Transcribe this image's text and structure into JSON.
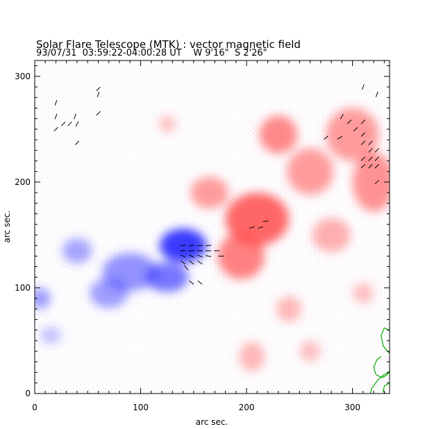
{
  "figure": {
    "title": "Solar Flare Telescope (MTK) : vector magnetic field",
    "subtitle": "93/07/31  03:59:22-04:00:28 UT    W 9'16\"  S 2'26\""
  },
  "colors": {
    "positive_polarity": "#ff4d4d",
    "negative_polarity": "#3b3bff",
    "contour": "#00aa00",
    "vector": "#000000"
  },
  "chart_data": {
    "type": "heatmap",
    "title": "Solar Flare Telescope (MTK) : vector magnetic field",
    "xlabel": "arc sec.",
    "ylabel": "arc sec.",
    "xlim": [
      0,
      335
    ],
    "ylim": [
      0,
      315
    ],
    "x_ticks": [
      {
        "value": 0,
        "label": "0"
      },
      {
        "value": 100,
        "label": "100"
      },
      {
        "value": 200,
        "label": "200"
      },
      {
        "value": 300,
        "label": "300"
      }
    ],
    "y_ticks": [
      {
        "value": 0,
        "label": "0"
      },
      {
        "value": 100,
        "label": "100"
      },
      {
        "value": 200,
        "label": "200"
      },
      {
        "value": 300,
        "label": "300"
      }
    ],
    "regions": [
      {
        "polarity": "negative",
        "x": 140,
        "y": 140,
        "rx": 22,
        "ry": 16,
        "strength": 1.0
      },
      {
        "polarity": "negative",
        "x": 125,
        "y": 110,
        "rx": 20,
        "ry": 14,
        "strength": 0.7
      },
      {
        "polarity": "negative",
        "x": 90,
        "y": 115,
        "rx": 26,
        "ry": 18,
        "strength": 0.55
      },
      {
        "polarity": "negative",
        "x": 70,
        "y": 95,
        "rx": 18,
        "ry": 14,
        "strength": 0.5
      },
      {
        "polarity": "negative",
        "x": 40,
        "y": 135,
        "rx": 14,
        "ry": 12,
        "strength": 0.45
      },
      {
        "polarity": "negative",
        "x": 5,
        "y": 90,
        "rx": 10,
        "ry": 10,
        "strength": 0.5
      },
      {
        "polarity": "negative",
        "x": 15,
        "y": 55,
        "rx": 10,
        "ry": 8,
        "strength": 0.3
      },
      {
        "polarity": "positive",
        "x": 210,
        "y": 165,
        "rx": 30,
        "ry": 25,
        "strength": 0.85
      },
      {
        "polarity": "positive",
        "x": 195,
        "y": 130,
        "rx": 22,
        "ry": 22,
        "strength": 0.7
      },
      {
        "polarity": "positive",
        "x": 165,
        "y": 190,
        "rx": 18,
        "ry": 15,
        "strength": 0.55
      },
      {
        "polarity": "positive",
        "x": 230,
        "y": 245,
        "rx": 18,
        "ry": 18,
        "strength": 0.65
      },
      {
        "polarity": "positive",
        "x": 260,
        "y": 210,
        "rx": 22,
        "ry": 22,
        "strength": 0.55
      },
      {
        "polarity": "positive",
        "x": 300,
        "y": 245,
        "rx": 25,
        "ry": 25,
        "strength": 0.55
      },
      {
        "polarity": "positive",
        "x": 320,
        "y": 200,
        "rx": 20,
        "ry": 28,
        "strength": 0.6
      },
      {
        "polarity": "positive",
        "x": 280,
        "y": 150,
        "rx": 18,
        "ry": 16,
        "strength": 0.45
      },
      {
        "polarity": "positive",
        "x": 240,
        "y": 80,
        "rx": 12,
        "ry": 12,
        "strength": 0.4
      },
      {
        "polarity": "positive",
        "x": 260,
        "y": 40,
        "rx": 10,
        "ry": 10,
        "strength": 0.35
      },
      {
        "polarity": "positive",
        "x": 205,
        "y": 35,
        "rx": 12,
        "ry": 14,
        "strength": 0.4
      },
      {
        "polarity": "positive",
        "x": 125,
        "y": 255,
        "rx": 8,
        "ry": 8,
        "strength": 0.35
      },
      {
        "polarity": "positive",
        "x": 310,
        "y": 95,
        "rx": 10,
        "ry": 10,
        "strength": 0.35
      }
    ],
    "vectors": [
      {
        "x": 20,
        "y": 275,
        "angle": 70
      },
      {
        "x": 20,
        "y": 262,
        "angle": 70
      },
      {
        "x": 20,
        "y": 250,
        "angle": 45
      },
      {
        "x": 27,
        "y": 255,
        "angle": 45
      },
      {
        "x": 33,
        "y": 255,
        "angle": 45
      },
      {
        "x": 38,
        "y": 262,
        "angle": 70
      },
      {
        "x": 40,
        "y": 255,
        "angle": 60
      },
      {
        "x": 40,
        "y": 237,
        "angle": 45
      },
      {
        "x": 60,
        "y": 288,
        "angle": 45
      },
      {
        "x": 60,
        "y": 283,
        "angle": 70
      },
      {
        "x": 60,
        "y": 265,
        "angle": 45
      },
      {
        "x": 140,
        "y": 140,
        "angle": 5
      },
      {
        "x": 148,
        "y": 140,
        "angle": 5
      },
      {
        "x": 156,
        "y": 140,
        "angle": 5
      },
      {
        "x": 164,
        "y": 140,
        "angle": 5
      },
      {
        "x": 140,
        "y": 135,
        "angle": 0
      },
      {
        "x": 148,
        "y": 135,
        "angle": 0
      },
      {
        "x": 156,
        "y": 135,
        "angle": 0
      },
      {
        "x": 164,
        "y": 135,
        "angle": 0
      },
      {
        "x": 172,
        "y": 135,
        "angle": 0
      },
      {
        "x": 140,
        "y": 130,
        "angle": -20
      },
      {
        "x": 148,
        "y": 130,
        "angle": -25
      },
      {
        "x": 156,
        "y": 130,
        "angle": -20
      },
      {
        "x": 164,
        "y": 130,
        "angle": -10
      },
      {
        "x": 176,
        "y": 130,
        "angle": 0
      },
      {
        "x": 140,
        "y": 124,
        "angle": -40
      },
      {
        "x": 148,
        "y": 124,
        "angle": -40
      },
      {
        "x": 156,
        "y": 124,
        "angle": -35
      },
      {
        "x": 148,
        "y": 105,
        "angle": -40
      },
      {
        "x": 156,
        "y": 105,
        "angle": -40
      },
      {
        "x": 143,
        "y": 119,
        "angle": -50
      },
      {
        "x": 205,
        "y": 157,
        "angle": 15
      },
      {
        "x": 213,
        "y": 157,
        "angle": 15
      },
      {
        "x": 218,
        "y": 163,
        "angle": 5
      },
      {
        "x": 275,
        "y": 242,
        "angle": 40
      },
      {
        "x": 288,
        "y": 242,
        "angle": 30
      },
      {
        "x": 290,
        "y": 262,
        "angle": 60
      },
      {
        "x": 297,
        "y": 257,
        "angle": 45
      },
      {
        "x": 303,
        "y": 250,
        "angle": 45
      },
      {
        "x": 310,
        "y": 257,
        "angle": 45
      },
      {
        "x": 310,
        "y": 245,
        "angle": 45
      },
      {
        "x": 310,
        "y": 237,
        "angle": 45
      },
      {
        "x": 317,
        "y": 237,
        "angle": 45
      },
      {
        "x": 317,
        "y": 230,
        "angle": 45
      },
      {
        "x": 317,
        "y": 222,
        "angle": 45
      },
      {
        "x": 323,
        "y": 230,
        "angle": 45
      },
      {
        "x": 323,
        "y": 222,
        "angle": 45
      },
      {
        "x": 310,
        "y": 222,
        "angle": 45
      },
      {
        "x": 310,
        "y": 215,
        "angle": 45
      },
      {
        "x": 317,
        "y": 215,
        "angle": 45
      },
      {
        "x": 323,
        "y": 215,
        "angle": 45
      },
      {
        "x": 323,
        "y": 200,
        "angle": 45
      },
      {
        "x": 310,
        "y": 290,
        "angle": 70
      },
      {
        "x": 323,
        "y": 283,
        "angle": 70
      }
    ],
    "contours": [
      [
        [
          335,
          60
        ],
        [
          330,
          62
        ],
        [
          327,
          55
        ],
        [
          329,
          45
        ],
        [
          333,
          40
        ],
        [
          335,
          38
        ]
      ],
      [
        [
          335,
          20
        ],
        [
          330,
          18
        ],
        [
          325,
          14
        ],
        [
          322,
          10
        ],
        [
          318,
          5
        ],
        [
          317,
          0
        ]
      ],
      [
        [
          327,
          35
        ],
        [
          323,
          32
        ],
        [
          320,
          25
        ],
        [
          322,
          18
        ],
        [
          328,
          15
        ],
        [
          333,
          18
        ],
        [
          335,
          22
        ]
      ],
      [
        [
          335,
          10
        ],
        [
          330,
          7
        ],
        [
          329,
          2
        ],
        [
          331,
          0
        ]
      ]
    ]
  }
}
